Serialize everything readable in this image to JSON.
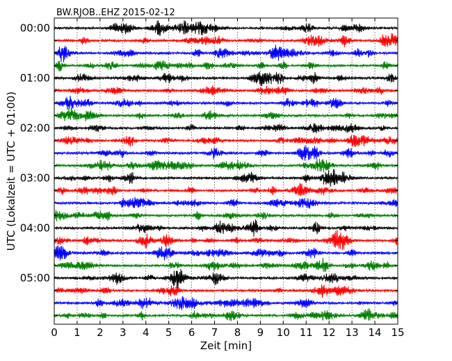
{
  "chart_data": {
    "type": "line",
    "title": "BW.RJOB..EHZ 2015-02-12",
    "xlabel": "Zeit  [min]",
    "ylabel": "UTC (Lokalzeit = UTC + 01:00)",
    "xlim": [
      0,
      15
    ],
    "xticks": [
      "0",
      "1",
      "2",
      "3",
      "4",
      "5",
      "6",
      "7",
      "8",
      "9",
      "10",
      "11",
      "12",
      "13",
      "14",
      "15"
    ],
    "hour_labels": [
      "00:00",
      "01:00",
      "02:00",
      "03:00",
      "04:00",
      "05:00"
    ],
    "traces_per_hour": 4,
    "trace_count": 24,
    "trace_colors": [
      "#000000",
      "#ff0000",
      "#0000ff",
      "#007f00"
    ],
    "grid": "vertical-dotted"
  }
}
